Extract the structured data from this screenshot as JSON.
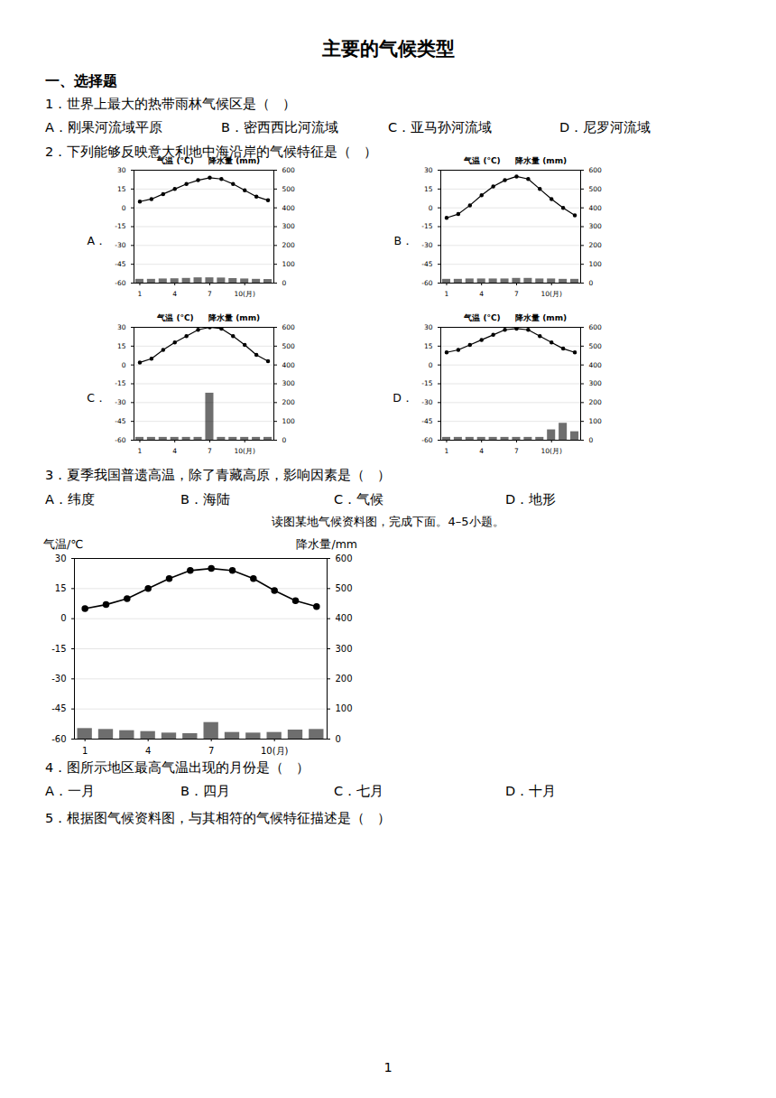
{
  "title": "主要的气候类型",
  "annotations": [
    [
      "一、选择题"
    ],
    [
      "1．世界上最大的热带雨林气候区是（   ）"
    ],
    [
      "A．刚果河流域平原",
      "B．密西西比河流域",
      "C．亚马孙河流域",
      "D．尼罗河流域"
    ],
    [
      "2．下列能够反映意大利地中海沿岸的气候特征是（   ）"
    ],
    [
      "3．夏季我国普遗高温，除了青藏高原，影响因素是（   ）"
    ],
    [
      "A．纬度",
      "B．海陆",
      "C．气候",
      "D．地形"
    ],
    [
      "读图某地气候资料图，完成下面。4–5小题。"
    ],
    [
      "4．图所示地区最高气温出现的月份是（   ）"
    ],
    [
      "A．一月",
      "B．四月",
      "C．七月",
      "D．十月"
    ],
    [
      "5．根据图气候资料图，与其相符的气候特征描述是（   ）"
    ],
    [
      "1"
    ]
  ],
  "chart_data": [
    {
      "type": "bar",
      "title": "A．",
      "ylabel": "气温 (°C)",
      "y2label": "降水量 (mm)",
      "x": [
        1,
        2,
        3,
        4,
        5,
        6,
        7,
        8,
        9,
        10,
        11,
        12
      ],
      "xlim": [
        0.5,
        12.5
      ],
      "xticks": [
        1,
        4,
        7,
        {
          "value": 10,
          "label": "10(月)"
        }
      ],
      "ylim": [
        -60,
        30
      ],
      "yticks": [
        -60,
        -45,
        -30,
        -15,
        0,
        15,
        30
      ],
      "y2lim": [
        0,
        600
      ],
      "y2ticks": [
        0,
        100,
        200,
        300,
        400,
        500,
        600
      ],
      "grid": true,
      "series": [
        {
          "type": "bar",
          "axis": "y2",
          "color": "#555555",
          "values": [
            20,
            20,
            22,
            23,
            25,
            28,
            28,
            27,
            24,
            22,
            20,
            19
          ]
        },
        {
          "type": "line",
          "color": "#000000",
          "marker": "o",
          "values": [
            5,
            7,
            11,
            15,
            19,
            22,
            24,
            23,
            19,
            14,
            9,
            6
          ]
        }
      ]
    },
    {
      "type": "bar",
      "title": "B．",
      "ylabel": "气温 (°C)",
      "y2label": "降水量 (mm)",
      "x": [
        1,
        2,
        3,
        4,
        5,
        6,
        7,
        8,
        9,
        10,
        11,
        12
      ],
      "xlim": [
        0.5,
        12.5
      ],
      "xticks": [
        1,
        4,
        7,
        {
          "value": 10,
          "label": "10(月)"
        }
      ],
      "ylim": [
        -60,
        30
      ],
      "yticks": [
        -60,
        -45,
        -30,
        -15,
        0,
        15,
        30
      ],
      "y2lim": [
        0,
        600
      ],
      "y2ticks": [
        0,
        100,
        200,
        300,
        400,
        500,
        600
      ],
      "grid": true,
      "series": [
        {
          "type": "bar",
          "axis": "y2",
          "color": "#555555",
          "values": [
            20,
            20,
            22,
            22,
            22,
            22,
            25,
            25,
            22,
            22,
            20,
            20
          ]
        },
        {
          "type": "line",
          "color": "#000000",
          "marker": "o",
          "values": [
            -8,
            -5,
            2,
            10,
            17,
            22,
            25,
            23,
            15,
            7,
            0,
            -6
          ]
        }
      ]
    },
    {
      "type": "bar",
      "title": "C．",
      "ylabel": "气温 (°C)",
      "y2label": "降水量 (mm)",
      "x": [
        1,
        2,
        3,
        4,
        5,
        6,
        7,
        8,
        9,
        10,
        11,
        12
      ],
      "xlim": [
        0.5,
        12.5
      ],
      "xticks": [
        1,
        4,
        7,
        {
          "value": 10,
          "label": "10(月)"
        }
      ],
      "ylim": [
        -60,
        30
      ],
      "yticks": [
        -60,
        -45,
        -30,
        -15,
        0,
        15,
        30
      ],
      "y2lim": [
        0,
        600
      ],
      "y2ticks": [
        0,
        100,
        200,
        300,
        400,
        500,
        600
      ],
      "grid": true,
      "series": [
        {
          "type": "bar",
          "axis": "y2",
          "color": "#555555",
          "values": [
            15,
            15,
            15,
            15,
            15,
            15,
            250,
            15,
            15,
            15,
            15,
            15
          ]
        },
        {
          "type": "line",
          "color": "#000000",
          "marker": "o",
          "values": [
            2,
            5,
            12,
            18,
            23,
            28,
            30,
            29,
            23,
            16,
            8,
            3
          ]
        }
      ]
    },
    {
      "type": "bar",
      "title": "D．",
      "ylabel": "气温 (°C)",
      "y2label": "降水量 (mm)",
      "x": [
        1,
        2,
        3,
        4,
        5,
        6,
        7,
        8,
        9,
        10,
        11,
        12
      ],
      "xlim": [
        0.5,
        12.5
      ],
      "xticks": [
        1,
        4,
        7,
        {
          "value": 10,
          "label": "10(月)"
        }
      ],
      "ylim": [
        -60,
        30
      ],
      "yticks": [
        -60,
        -45,
        -30,
        -15,
        0,
        15,
        30
      ],
      "y2lim": [
        0,
        600
      ],
      "y2ticks": [
        0,
        100,
        200,
        300,
        400,
        500,
        600
      ],
      "grid": true,
      "series": [
        {
          "type": "bar",
          "axis": "y2",
          "color": "#555555",
          "values": [
            15,
            15,
            15,
            15,
            15,
            15,
            15,
            15,
            15,
            55,
            90,
            45
          ]
        },
        {
          "type": "line",
          "color": "#000000",
          "marker": "o",
          "values": [
            10,
            12,
            16,
            20,
            24,
            28,
            29,
            28,
            23,
            18,
            13,
            10
          ]
        }
      ]
    },
    {
      "type": "bar",
      "ylabel": "气温/℃",
      "y2label": "降水量/mm",
      "x": [
        1,
        2,
        3,
        4,
        5,
        6,
        7,
        8,
        9,
        10,
        11,
        12
      ],
      "xlim": [
        0.5,
        12.5
      ],
      "xticks": [
        1,
        4,
        7,
        {
          "value": 10,
          "label": "10(月)"
        }
      ],
      "ylim": [
        -60,
        30
      ],
      "yticks": [
        -60,
        -45,
        -30,
        -15,
        0,
        15,
        30
      ],
      "y2lim": [
        0,
        600
      ],
      "y2ticks": [
        0,
        100,
        200,
        300,
        400,
        500,
        600
      ],
      "grid": true,
      "series": [
        {
          "type": "bar",
          "axis": "y2",
          "color": "#555555",
          "values": [
            35,
            32,
            28,
            25,
            20,
            18,
            55,
            22,
            20,
            22,
            30,
            32
          ]
        },
        {
          "type": "line",
          "color": "#000000",
          "marker": "o",
          "values": [
            5,
            7,
            10,
            15,
            20,
            24,
            25,
            24,
            20,
            14,
            9,
            6
          ]
        }
      ]
    }
  ]
}
